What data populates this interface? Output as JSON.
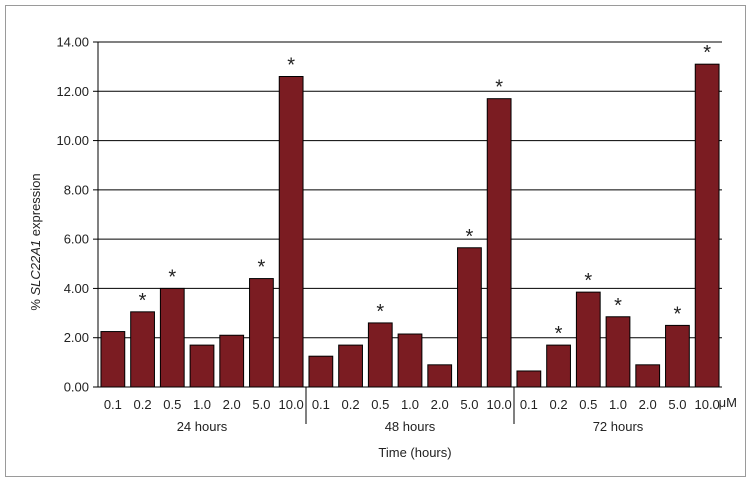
{
  "chart_data": {
    "type": "bar",
    "ylabel_prefix": "% ",
    "ylabel_gene": "SLC22A1",
    "ylabel_suffix": " expression",
    "xlabel": "Time (hours)",
    "unit": "μM",
    "ylim": [
      0,
      14
    ],
    "yticks": [
      "0.00",
      "2.00",
      "4.00",
      "6.00",
      "8.00",
      "10.00",
      "12.00",
      "14.00"
    ],
    "grid": true,
    "bar_color": "#7b1c22",
    "significance_marker": "*",
    "groups": [
      {
        "label": "24 hours",
        "categories": [
          "0.1",
          "0.2",
          "0.5",
          "1.0",
          "2.0",
          "5.0",
          "10.0"
        ],
        "values": [
          2.25,
          3.05,
          4.0,
          1.7,
          2.1,
          4.4,
          12.6
        ],
        "significant": [
          false,
          true,
          true,
          false,
          false,
          true,
          true
        ]
      },
      {
        "label": "48 hours",
        "categories": [
          "0.1",
          "0.2",
          "0.5",
          "1.0",
          "2.0",
          "5.0",
          "10.0"
        ],
        "values": [
          1.25,
          1.7,
          2.6,
          2.15,
          0.9,
          5.65,
          11.7
        ],
        "significant": [
          false,
          false,
          true,
          false,
          false,
          true,
          true
        ]
      },
      {
        "label": "72 hours",
        "categories": [
          "0.1",
          "0.2",
          "0.5",
          "1.0",
          "2.0",
          "5.0",
          "10.0"
        ],
        "values": [
          0.65,
          1.7,
          3.85,
          2.85,
          0.9,
          2.5,
          13.1
        ],
        "significant": [
          false,
          true,
          true,
          true,
          false,
          true,
          true
        ]
      }
    ]
  }
}
